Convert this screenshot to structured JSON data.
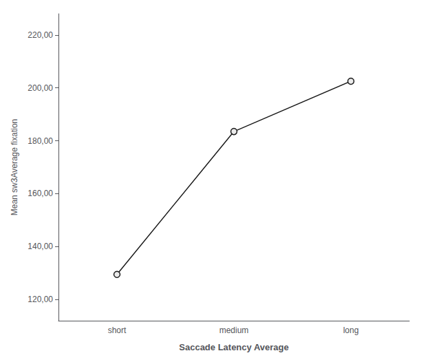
{
  "chart_data": {
    "type": "line",
    "categories": [
      "short",
      "medium",
      "long"
    ],
    "values": [
      129.5,
      183.5,
      202.5
    ],
    "xlabel": "Saccade Latency Average",
    "ylabel": "Mean sw3Average fixation",
    "ylim": [
      112,
      228
    ],
    "yticks": [
      {
        "value": 120.0,
        "label": "120,00"
      },
      {
        "value": 140.0,
        "label": "140,00"
      },
      {
        "value": 160.0,
        "label": "160,00"
      },
      {
        "value": 180.0,
        "label": "180,00"
      },
      {
        "value": 200.0,
        "label": "200,00"
      },
      {
        "value": 220.0,
        "label": "220,00"
      }
    ],
    "grid": false,
    "color": "#1a1a1a",
    "marker": "circle"
  }
}
